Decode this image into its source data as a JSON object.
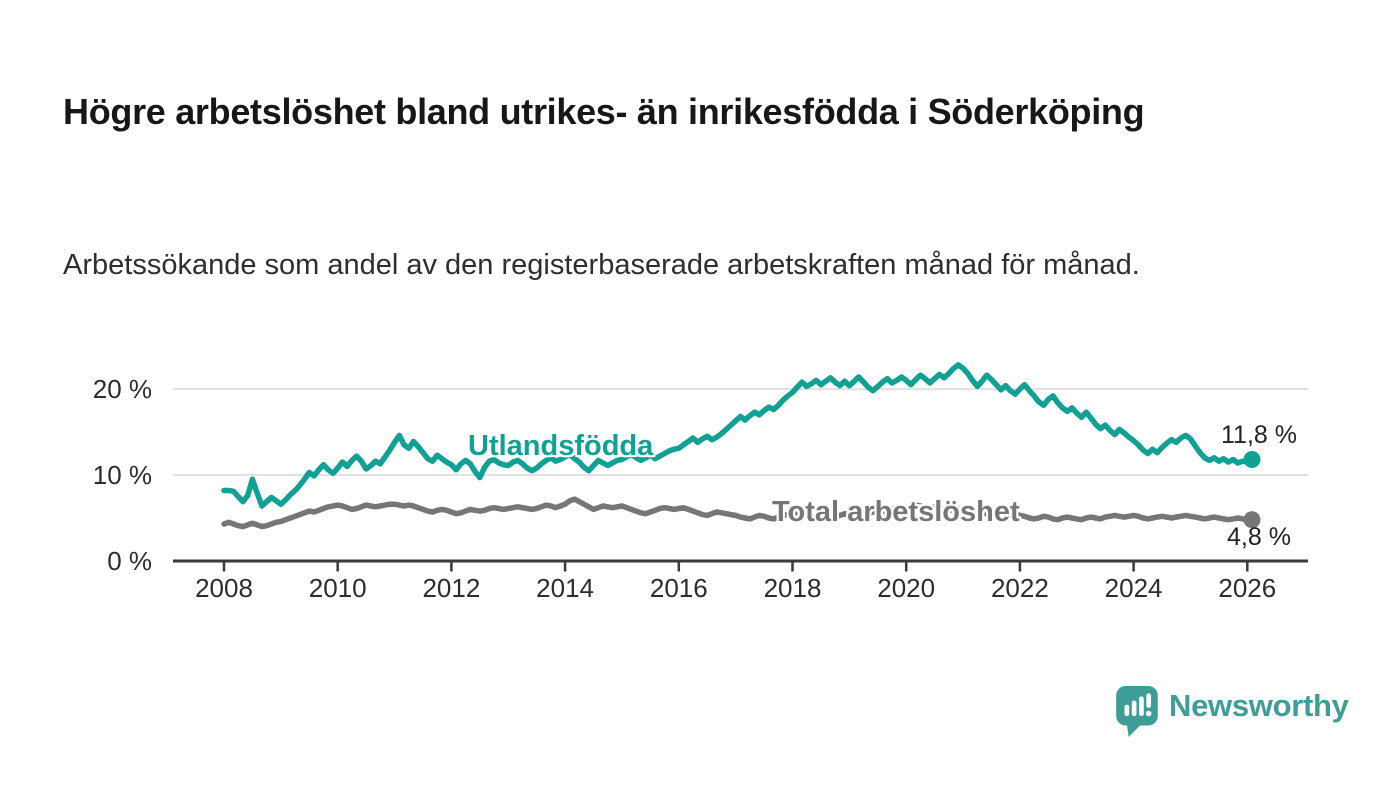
{
  "header": {
    "title": "Högre arbetslöshet bland utrikes- än inrikesfödda i Söderköping",
    "subtitle": "Arbetssökande som andel av den registerbaserade arbetskraften månad för månad."
  },
  "chart_data": {
    "type": "line",
    "unit": "%",
    "frequency": "monthly",
    "x_start": "2008-01",
    "x_end": "2026-02",
    "xlim": [
      2007.1,
      2027.1
    ],
    "ylim": [
      0,
      23
    ],
    "grid": "horizontal",
    "grid_color": "#d9d9d9",
    "axis_color": "#3a3a3a",
    "x_ticks": [
      2008,
      2010,
      2012,
      2014,
      2016,
      2018,
      2020,
      2022,
      2024,
      2026
    ],
    "y_ticks": [
      {
        "value": 0,
        "label": "0 %"
      },
      {
        "value": 10,
        "label": "10 %"
      },
      {
        "value": 20,
        "label": "20 %"
      }
    ],
    "series": [
      {
        "name": "Utlandsfödda",
        "color": "#0fa294",
        "end_value": 11.8,
        "end_label": "11,8 %",
        "values": [
          8.2,
          8.2,
          8.1,
          7.5,
          6.9,
          7.6,
          9.5,
          7.9,
          6.4,
          6.9,
          7.4,
          7.0,
          6.6,
          7.1,
          7.7,
          8.2,
          8.8,
          9.5,
          10.3,
          9.9,
          10.6,
          11.2,
          10.6,
          10.2,
          10.8,
          11.5,
          11.0,
          11.7,
          12.2,
          11.6,
          10.7,
          11.1,
          11.6,
          11.3,
          12.1,
          12.9,
          13.8,
          14.6,
          13.5,
          13.1,
          13.9,
          13.3,
          12.6,
          11.9,
          11.6,
          12.3,
          11.9,
          11.5,
          11.2,
          10.6,
          11.3,
          11.7,
          11.3,
          10.4,
          9.7,
          10.9,
          11.6,
          11.8,
          11.4,
          11.2,
          11.1,
          11.5,
          11.7,
          11.3,
          10.8,
          10.5,
          10.8,
          11.3,
          11.7,
          12.0,
          11.6,
          11.8,
          12.1,
          12.4,
          11.9,
          11.5,
          10.9,
          10.5,
          11.1,
          11.7,
          11.4,
          11.1,
          11.4,
          11.7,
          11.8,
          12.1,
          12.4,
          12.0,
          11.7,
          12.0,
          12.3,
          11.9,
          12.2,
          12.5,
          12.8,
          13.0,
          13.1,
          13.5,
          13.9,
          14.3,
          13.8,
          14.2,
          14.5,
          14.1,
          14.4,
          14.8,
          15.3,
          15.8,
          16.3,
          16.8,
          16.4,
          16.9,
          17.3,
          17.0,
          17.5,
          17.9,
          17.6,
          18.1,
          18.7,
          19.2,
          19.6,
          20.2,
          20.8,
          20.3,
          20.6,
          21.0,
          20.5,
          20.9,
          21.3,
          20.8,
          20.4,
          20.9,
          20.4,
          20.9,
          21.4,
          20.8,
          20.2,
          19.8,
          20.3,
          20.8,
          21.2,
          20.7,
          21.0,
          21.4,
          21.0,
          20.5,
          21.1,
          21.6,
          21.2,
          20.7,
          21.2,
          21.7,
          21.3,
          21.8,
          22.4,
          22.8,
          22.4,
          21.8,
          21.0,
          20.3,
          20.9,
          21.6,
          21.1,
          20.5,
          19.9,
          20.4,
          19.8,
          19.4,
          20.0,
          20.5,
          19.8,
          19.2,
          18.5,
          18.1,
          18.8,
          19.2,
          18.4,
          17.8,
          17.4,
          17.8,
          17.2,
          16.7,
          17.3,
          16.6,
          15.9,
          15.4,
          15.8,
          15.2,
          14.7,
          15.3,
          14.9,
          14.4,
          14.0,
          13.5,
          12.9,
          12.5,
          13.0,
          12.6,
          13.2,
          13.7,
          14.1,
          13.8,
          14.3,
          14.6,
          14.2,
          13.4,
          12.6,
          12.0,
          11.7,
          12.0,
          11.6,
          11.9,
          11.5,
          11.8,
          11.4,
          11.6,
          11.5,
          11.8
        ]
      },
      {
        "name": "Total arbetslöshet",
        "color": "#75757a",
        "end_value": 4.8,
        "end_label": "4,8 %",
        "values": [
          4.3,
          4.5,
          4.3,
          4.1,
          4.0,
          4.2,
          4.4,
          4.2,
          4.0,
          4.1,
          4.3,
          4.5,
          4.6,
          4.8,
          5.0,
          5.2,
          5.4,
          5.6,
          5.8,
          5.7,
          5.9,
          6.1,
          6.3,
          6.4,
          6.5,
          6.4,
          6.2,
          6.0,
          6.1,
          6.3,
          6.5,
          6.4,
          6.3,
          6.4,
          6.5,
          6.6,
          6.6,
          6.5,
          6.4,
          6.5,
          6.4,
          6.2,
          6.0,
          5.8,
          5.7,
          5.9,
          6.0,
          5.9,
          5.7,
          5.5,
          5.6,
          5.8,
          6.0,
          5.9,
          5.8,
          5.9,
          6.1,
          6.2,
          6.1,
          6.0,
          6.1,
          6.2,
          6.3,
          6.2,
          6.1,
          6.0,
          6.1,
          6.3,
          6.5,
          6.4,
          6.2,
          6.4,
          6.6,
          7.0,
          7.2,
          6.9,
          6.6,
          6.3,
          6.0,
          6.2,
          6.4,
          6.3,
          6.2,
          6.3,
          6.4,
          6.2,
          6.0,
          5.8,
          5.6,
          5.5,
          5.7,
          5.9,
          6.1,
          6.2,
          6.1,
          6.0,
          6.1,
          6.2,
          6.0,
          5.8,
          5.6,
          5.4,
          5.3,
          5.5,
          5.7,
          5.6,
          5.5,
          5.4,
          5.3,
          5.1,
          5.0,
          4.9,
          5.1,
          5.3,
          5.2,
          5.0,
          4.9,
          5.1,
          5.3,
          5.4,
          5.3,
          5.5,
          5.6,
          5.4,
          5.2,
          5.1,
          5.3,
          5.5,
          5.4,
          5.2,
          5.3,
          5.5,
          5.4,
          5.6,
          5.5,
          5.3,
          5.5,
          5.7,
          5.9,
          5.8,
          6.0,
          6.1,
          6.0,
          6.2,
          6.2,
          6.3,
          6.5,
          6.4,
          6.2,
          6.1,
          6.3,
          6.2,
          6.0,
          5.9,
          6.0,
          6.1,
          6.0,
          6.1,
          6.0,
          5.8,
          5.6,
          5.5,
          5.7,
          5.6,
          5.4,
          5.3,
          5.4,
          5.5,
          5.3,
          5.2,
          5.0,
          4.9,
          5.0,
          5.2,
          5.1,
          4.9,
          4.8,
          5.0,
          5.1,
          5.0,
          4.9,
          4.8,
          5.0,
          5.1,
          5.0,
          4.9,
          5.1,
          5.2,
          5.3,
          5.2,
          5.1,
          5.2,
          5.3,
          5.2,
          5.0,
          4.9,
          5.0,
          5.1,
          5.2,
          5.1,
          5.0,
          5.1,
          5.2,
          5.3,
          5.2,
          5.1,
          5.0,
          4.9,
          5.0,
          5.1,
          5.0,
          4.9,
          4.8,
          4.9,
          5.0,
          4.9,
          4.8,
          4.8
        ]
      }
    ]
  },
  "branding": {
    "logo_text": "Newsworthy",
    "logo_color": "#3e9e97",
    "logo_icon": "speech-bubble-bar-chart-icon"
  }
}
